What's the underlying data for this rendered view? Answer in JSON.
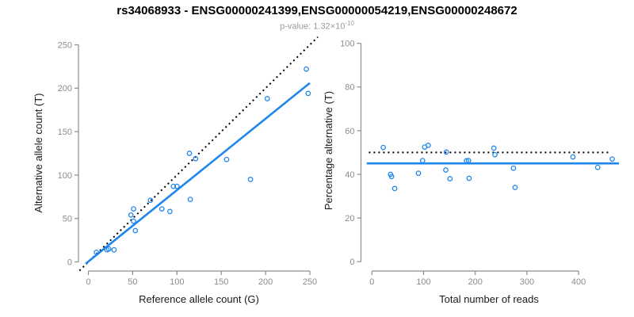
{
  "header": {
    "title": "rs34068933 - ENSG00000241399,ENSG00000054219,ENSG00000248672",
    "p_value_text": "p-value: 1.32×10",
    "p_value_exponent": "-10"
  },
  "colors": {
    "accent_blue": "#1E86EC",
    "axis_gray": "#8C8C8C",
    "tick_label_gray": "#8C8C8C",
    "axis_title_dark": "#1A1A1A",
    "subtitle_gray": "#9A9A9A"
  },
  "chart_data": [
    {
      "type": "scatter",
      "xlabel": "Reference allele count (G)",
      "ylabel": "Alternative allele count (T)",
      "xticks": [
        0,
        50,
        100,
        150,
        200,
        250
      ],
      "yticks": [
        0,
        50,
        100,
        150,
        200,
        250
      ],
      "xlim": [
        -10,
        260
      ],
      "ylim": [
        -10,
        260
      ],
      "grid": false,
      "legend": "none",
      "points": [
        [
          9,
          11
        ],
        [
          21,
          14
        ],
        [
          23,
          15
        ],
        [
          29,
          14
        ],
        [
          48,
          54
        ],
        [
          51,
          61
        ],
        [
          51,
          47
        ],
        [
          53,
          36
        ],
        [
          70,
          71
        ],
        [
          83,
          61
        ],
        [
          92,
          58
        ],
        [
          96,
          87
        ],
        [
          100,
          87
        ],
        [
          114,
          125
        ],
        [
          115,
          72
        ],
        [
          121,
          119
        ],
        [
          156,
          118
        ],
        [
          183,
          95
        ],
        [
          202,
          188
        ],
        [
          246,
          222
        ],
        [
          248,
          194
        ]
      ],
      "lines": [
        {
          "name": "identity-dotted-line",
          "style": "dotted",
          "color": "#000000",
          "x1": -10,
          "y1": -10,
          "x2": 259,
          "y2": 259
        },
        {
          "name": "fit-line",
          "style": "solid",
          "color": "#1E86EC",
          "x1": -3,
          "y1": -2,
          "x2": 250,
          "y2": 206
        }
      ]
    },
    {
      "type": "scatter",
      "xlabel": "Total number of reads",
      "ylabel": "Percentage alternative (T)",
      "xticks": [
        0,
        100,
        200,
        300,
        400
      ],
      "yticks": [
        0,
        20,
        40,
        60,
        80,
        100
      ],
      "xlim": [
        -10,
        480
      ],
      "ylim": [
        0,
        100
      ],
      "grid": false,
      "legend": "none",
      "points": [
        [
          22,
          52.3
        ],
        [
          36,
          40
        ],
        [
          38,
          39
        ],
        [
          44,
          33.5
        ],
        [
          90,
          40.5
        ],
        [
          98,
          46.3
        ],
        [
          102,
          52.5
        ],
        [
          109,
          53.3
        ],
        [
          143,
          42
        ],
        [
          144,
          50.2
        ],
        [
          151,
          38
        ],
        [
          183,
          46.2
        ],
        [
          187,
          46.3
        ],
        [
          188,
          38.2
        ],
        [
          236,
          52
        ],
        [
          238,
          49
        ],
        [
          274,
          42.8
        ],
        [
          277,
          34
        ],
        [
          389,
          48
        ],
        [
          437,
          43.2
        ],
        [
          465,
          47
        ]
      ],
      "lines": [
        {
          "name": "expected-50pct-dotted-line",
          "style": "dotted",
          "color": "#000000",
          "x1": -6,
          "y1": 50,
          "x2": 461,
          "y2": 50
        },
        {
          "name": "mean-pct-line",
          "style": "solid",
          "color": "#1E86EC",
          "x1": -10,
          "y1": 45,
          "x2": 478,
          "y2": 45
        }
      ]
    }
  ]
}
